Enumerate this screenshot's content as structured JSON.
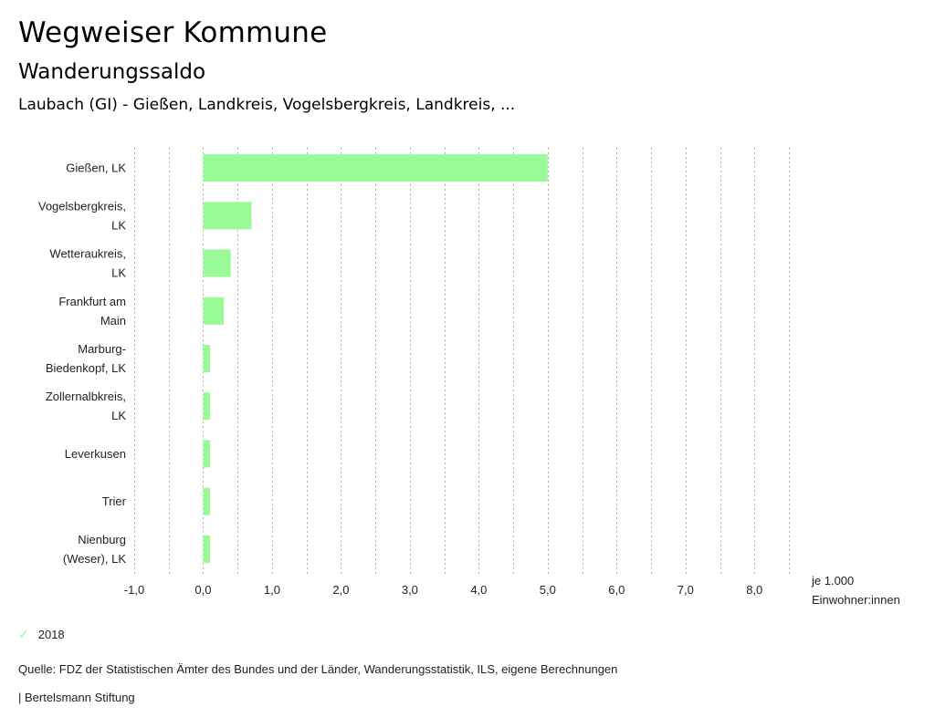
{
  "header": {
    "title": "Wegweiser Kommune",
    "subtitle": "Wanderungssaldo",
    "region": "Laubach (GI) - Gießen, Landkreis, Vogelsbergkreis, Landkreis, ..."
  },
  "chart_data": {
    "type": "bar",
    "orientation": "horizontal",
    "title": "Wanderungssaldo",
    "categories": [
      [
        "Gießen, LK"
      ],
      [
        "Vogelsbergkreis,",
        "LK"
      ],
      [
        "Wetteraukreis,",
        "LK"
      ],
      [
        "Frankfurt am",
        "Main"
      ],
      [
        "Marburg-",
        "Biedenkopf, LK"
      ],
      [
        "Zollernalbkreis,",
        "LK"
      ],
      [
        "Leverkusen"
      ],
      [
        "Trier"
      ],
      [
        "Nienburg",
        "(Weser), LK"
      ]
    ],
    "series": [
      {
        "name": "2018",
        "color": "#98fb98",
        "values": [
          5.0,
          0.7,
          0.4,
          0.3,
          0.1,
          0.1,
          0.1,
          0.1,
          0.1
        ]
      }
    ],
    "xlim": [
      -1.0,
      8.5
    ],
    "xticks": [
      -1,
      0,
      1,
      2,
      3,
      4,
      5,
      6,
      7,
      8
    ],
    "xtick_labels": [
      "-1,0",
      "0,0",
      "1,0",
      "2,0",
      "3,0",
      "4,0",
      "5,0",
      "6,0",
      "7,0",
      "8,0"
    ],
    "grid_step": 0.5,
    "grid": true,
    "xlabel": [
      "je 1.000",
      "Einwohner:innen"
    ],
    "ylabel": "",
    "legend_position": "bottom-left"
  },
  "legend": {
    "items": [
      {
        "label": "2018",
        "icon": "check-icon",
        "color": "#98fb98"
      }
    ]
  },
  "footer": {
    "source": "Quelle: FDZ der Statistischen Ämter des Bundes und der Länder, Wanderungsstatistik, ILS, eigene Berechnungen",
    "credit": "| Bertelsmann Stiftung"
  }
}
